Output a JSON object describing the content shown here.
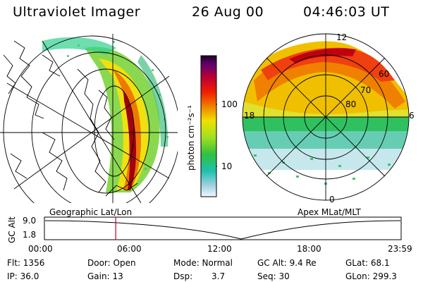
{
  "header": {
    "instrument": "Ultraviolet Imager",
    "date": "26 Aug 00",
    "time": "04:46:03 UT"
  },
  "colorbar": {
    "unit_label": "photon cm⁻²s⁻¹",
    "ticks": [
      "100",
      "10"
    ]
  },
  "left_panel": {
    "caption": "Geographic Lat/Lon"
  },
  "right_panel": {
    "caption": "Apex MLat/MLT",
    "mlt_labels": [
      "12",
      "18",
      "6",
      "0"
    ],
    "mlat_labels": [
      "60",
      "70",
      "80"
    ]
  },
  "altitude_plot": {
    "ylabel": "GC Alt",
    "yticks": [
      "9.0",
      "1.8"
    ],
    "xticks": [
      "00:00",
      "06:00",
      "12:00",
      "18:00",
      "23:59"
    ],
    "current_marker_hour": 4.77
  },
  "info": {
    "flt": "Flt: 1356",
    "ip": "IP: 36.0",
    "door": "Door: Open",
    "gain": "Gain: 13",
    "mode": "Mode: Normal",
    "dsp": "Dsp:",
    "dsp_val": "3.7",
    "gc_alt": "GC Alt: 9.4 Re",
    "seq": "Seq: 30",
    "glat": "GLat:  68.1",
    "glon": "GLon: 299.3"
  }
}
